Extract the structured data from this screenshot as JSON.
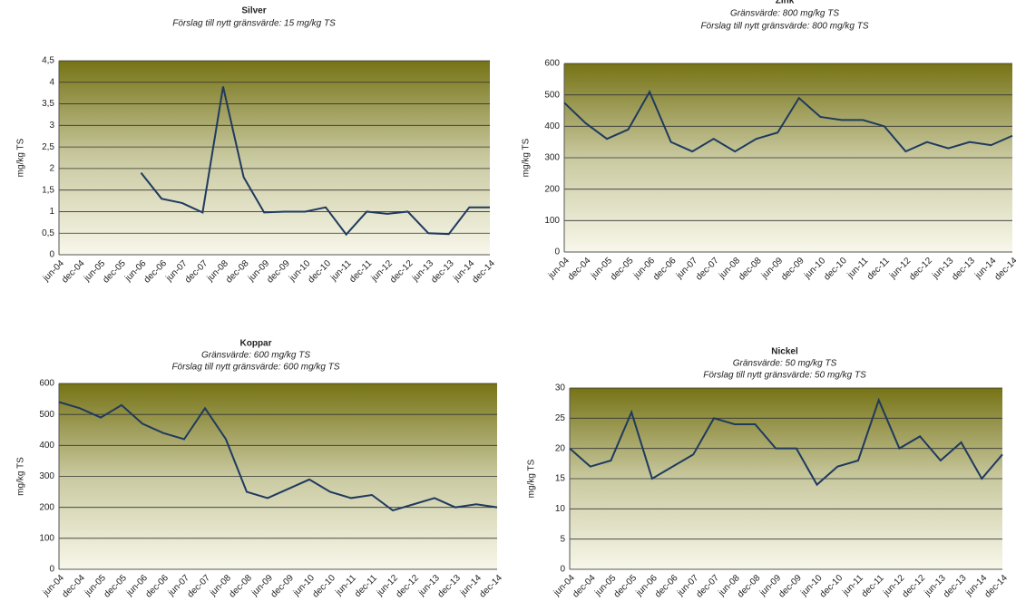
{
  "chart_data": [
    {
      "type": "line",
      "title": "Silver",
      "subtitles": [
        "Förslag till nytt gränsvärde: 15 mg/kg TS"
      ],
      "y_label": "mg/kg TS",
      "categories": [
        "jun-04",
        "dec-04",
        "jun-05",
        "dec-05",
        "jun-06",
        "dec-06",
        "jun-07",
        "dec-07",
        "jun-08",
        "dec-08",
        "jun-09",
        "dec-09",
        "jun-10",
        "dec-10",
        "jun-11",
        "dec-11",
        "jun-12",
        "dec-12",
        "jun-13",
        "dec-13",
        "jun-14",
        "dec-14"
      ],
      "values": [
        null,
        null,
        null,
        null,
        1.9,
        1.3,
        1.2,
        0.98,
        3.9,
        1.8,
        0.98,
        1.0,
        1.0,
        1.1,
        0.47,
        1.0,
        0.95,
        1.0,
        0.5,
        0.48,
        1.1,
        1.1
      ],
      "color": "#1f3a5f",
      "grid": true,
      "ylim": [
        0,
        4.5
      ],
      "yticks": [
        0,
        {
          "value": 0.5,
          "label": "0,5"
        },
        1,
        {
          "value": 1.5,
          "label": "1,5"
        },
        2,
        {
          "value": 2.5,
          "label": "2,5"
        },
        3,
        {
          "value": 3.5,
          "label": "3,5"
        },
        4,
        {
          "value": 4.5,
          "label": "4,5"
        }
      ]
    },
    {
      "type": "line",
      "title": "Zink",
      "subtitles": [
        "Gränsvärde: 800 mg/kg TS",
        "Förslag till nytt gränsvärde: 800 mg/kg TS"
      ],
      "y_label": "mg/kg TS",
      "categories": [
        "jun-04",
        "dec-04",
        "jun-05",
        "dec-05",
        "jun-06",
        "dec-06",
        "jun-07",
        "dec-07",
        "jun-08",
        "dec-08",
        "jun-09",
        "dec-09",
        "jun-10",
        "dec-10",
        "jun-11",
        "dec-11",
        "jun-12",
        "dec-12",
        "jun-13",
        "dec-13",
        "jun-14",
        "dec-14"
      ],
      "values": [
        475,
        410,
        360,
        390,
        510,
        350,
        320,
        360,
        320,
        360,
        380,
        490,
        430,
        420,
        420,
        400,
        320,
        350,
        330,
        350,
        340,
        370
      ],
      "color": "#1f3a5f",
      "grid": true,
      "ylim": [
        0,
        600
      ],
      "yticks": [
        0,
        100,
        200,
        300,
        400,
        500,
        600
      ]
    },
    {
      "type": "line",
      "title": "Koppar",
      "subtitles": [
        "Gränsvärde: 600 mg/kg TS",
        "Förslag till nytt gränsvärde: 600 mg/kg TS"
      ],
      "y_label": "mg/kg TS",
      "categories": [
        "jun-04",
        "dec-04",
        "jun-05",
        "dec-05",
        "jun-06",
        "dec-06",
        "jun-07",
        "dec-07",
        "jun-08",
        "dec-08",
        "jun-09",
        "dec-09",
        "jun-10",
        "dec-10",
        "jun-11",
        "dec-11",
        "jun-12",
        "dec-12",
        "jun-13",
        "dec-13",
        "jun-14",
        "dec-14"
      ],
      "values": [
        540,
        520,
        490,
        530,
        470,
        440,
        420,
        520,
        420,
        250,
        230,
        260,
        290,
        250,
        230,
        240,
        190,
        210,
        230,
        200,
        210,
        200
      ],
      "color": "#1f3a5f",
      "grid": true,
      "ylim": [
        0,
        600
      ],
      "yticks": [
        0,
        100,
        200,
        300,
        400,
        500,
        600
      ]
    },
    {
      "type": "line",
      "title": "Nickel",
      "subtitles": [
        "Gränsvärde: 50 mg/kg TS",
        "Förslag till nytt gränsvärde: 50 mg/kg TS"
      ],
      "y_label": "mg/kg TS",
      "categories": [
        "jun-04",
        "dec-04",
        "jun-05",
        "dec-05",
        "jun-06",
        "dec-06",
        "jun-07",
        "dec-07",
        "jun-08",
        "dec-08",
        "jun-09",
        "dec-09",
        "jun-10",
        "dec-10",
        "jun-11",
        "dec-11",
        "jun-12",
        "dec-12",
        "jun-13",
        "dec-13",
        "jun-14",
        "dec-14"
      ],
      "values": [
        20,
        17,
        18,
        26,
        15,
        17,
        19,
        25,
        24,
        24,
        20,
        20,
        14,
        17,
        18,
        28,
        20,
        22,
        18,
        21,
        15,
        19
      ],
      "color": "#1f3a5f",
      "grid": true,
      "ylim": [
        0,
        30
      ],
      "yticks": [
        0,
        5,
        10,
        15,
        20,
        25,
        30
      ]
    }
  ]
}
